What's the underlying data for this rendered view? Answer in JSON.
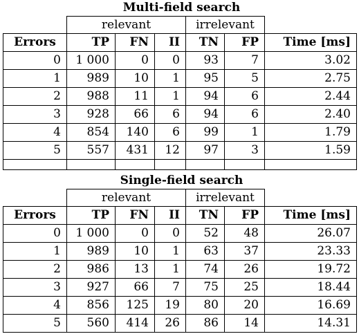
{
  "tables": [
    {
      "caption": "Multi-field search",
      "group_headers": [
        "relevant",
        "irrelevant"
      ],
      "columns": [
        "Errors",
        "TP",
        "FN",
        "II",
        "TN",
        "FP",
        "Time [ms]"
      ],
      "rows": [
        [
          "0",
          "1 000",
          "0",
          "0",
          "93",
          "7",
          "3.02"
        ],
        [
          "1",
          "989",
          "10",
          "1",
          "95",
          "5",
          "2.75"
        ],
        [
          "2",
          "988",
          "11",
          "1",
          "94",
          "6",
          "2.44"
        ],
        [
          "3",
          "928",
          "66",
          "6",
          "94",
          "6",
          "2.40"
        ],
        [
          "4",
          "854",
          "140",
          "6",
          "99",
          "1",
          "1.79"
        ],
        [
          "5",
          "557",
          "431",
          "12",
          "97",
          "3",
          "1.59"
        ]
      ]
    },
    {
      "caption": "Single-field search",
      "group_headers": [
        "relevant",
        "irrelevant"
      ],
      "columns": [
        "Errors",
        "TP",
        "FN",
        "II",
        "TN",
        "FP",
        "Time [ms]"
      ],
      "rows": [
        [
          "0",
          "1 000",
          "0",
          "0",
          "52",
          "48",
          "26.07"
        ],
        [
          "1",
          "989",
          "10",
          "1",
          "63",
          "37",
          "23.33"
        ],
        [
          "2",
          "986",
          "13",
          "1",
          "74",
          "26",
          "19.72"
        ],
        [
          "3",
          "927",
          "66",
          "7",
          "75",
          "25",
          "18.44"
        ],
        [
          "4",
          "856",
          "125",
          "19",
          "80",
          "20",
          "16.69"
        ],
        [
          "5",
          "560",
          "414",
          "26",
          "86",
          "14",
          "14.31"
        ]
      ]
    }
  ]
}
